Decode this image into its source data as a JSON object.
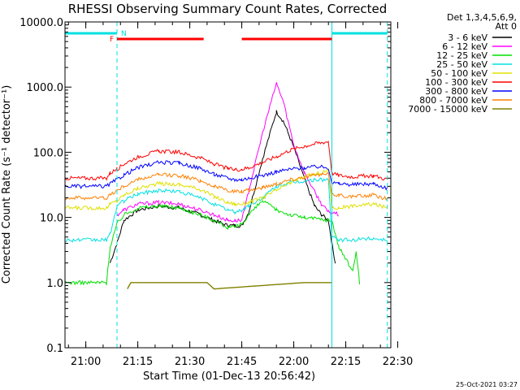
{
  "chart_data": {
    "type": "line",
    "title": "RHESSI Observing Summary Count Rates, Corrected",
    "ylabel": "Corrected Count Rate (s⁻¹ detector⁻¹)",
    "xlabel": "Start Time (01-Dec-13 20:56:42)",
    "timestamp": "25-Oct-2021 03:27",
    "y_scale": "log",
    "ylim": [
      0.1,
      10000
    ],
    "xlim_min": [
      57,
      151
    ],
    "y_ticks": [
      "0.1",
      "1.0",
      "10.0",
      "100.0",
      "1000.0",
      "10000.0"
    ],
    "x_ticks": [
      "21:00",
      "21:15",
      "21:30",
      "21:45",
      "22:00",
      "22:15",
      "22:30"
    ],
    "legend": {
      "header": [
        "Det 1,3,4,5,6,9,",
        "Att 0"
      ],
      "entries": [
        {
          "label": "3 - 6 keV",
          "color": "#000000"
        },
        {
          "label": "6 - 12 keV",
          "color": "#ff00ff"
        },
        {
          "label": "12 - 25 keV",
          "color": "#00e000"
        },
        {
          "label": "25 - 50 keV",
          "color": "#00e0e0"
        },
        {
          "label": "50 - 100 keV",
          "color": "#e0e000"
        },
        {
          "label": "100 - 300 keV",
          "color": "#ff0000"
        },
        {
          "label": "300 - 800 keV",
          "color": "#0000ff"
        },
        {
          "label": "800 - 7000 keV",
          "color": "#ff8000"
        },
        {
          "label": "7000 - 15000 keV",
          "color": "#808000"
        }
      ]
    },
    "markers": {
      "night_label": "N",
      "flare_label": "F",
      "night_segments": [
        [
          57,
          72
        ],
        [
          134,
          150
        ]
      ],
      "flare_segments": [
        [
          72,
          97
        ],
        [
          108,
          134
        ]
      ],
      "saa_boundaries": [
        57,
        72,
        134,
        150
      ]
    },
    "series": [
      {
        "name": "3 - 6 keV",
        "color": "#000000",
        "t": [
          57,
          69,
          70,
          72,
          74,
          78,
          84,
          90,
          96,
          100,
          104,
          106,
          108,
          110,
          114,
          118,
          120,
          123,
          126,
          129,
          131,
          133,
          134,
          135,
          136
        ],
        "v": [
          null,
          null,
          2.0,
          4.0,
          9.0,
          13.0,
          15.0,
          14.0,
          11.0,
          9.0,
          7.5,
          7.5,
          7.5,
          12.0,
          80.0,
          420.0,
          300.0,
          120.0,
          40.0,
          15.0,
          11.0,
          9.0,
          4.0,
          2.0,
          null
        ]
      },
      {
        "name": "6 - 12 keV",
        "color": "#ff00ff",
        "t": [
          72,
          74,
          78,
          84,
          90,
          96,
          100,
          104,
          106,
          108,
          110,
          114,
          118,
          120,
          123,
          126,
          129,
          131,
          133,
          134,
          136
        ],
        "v": [
          11.0,
          13.0,
          16.0,
          17.0,
          16.0,
          13.0,
          11.0,
          9.0,
          9.0,
          9.0,
          25.0,
          200.0,
          1150.0,
          600.0,
          130.0,
          50.0,
          25.0,
          16.0,
          12.0,
          12.0,
          11.0
        ]
      },
      {
        "name": "12 - 25 keV",
        "color": "#00e000",
        "t": [
          57,
          67,
          69,
          70,
          72,
          74,
          78,
          84,
          90,
          96,
          100,
          104,
          106,
          108,
          110,
          114,
          118,
          122,
          126,
          130,
          133,
          134,
          136,
          140,
          141,
          142
        ],
        "v": [
          1.0,
          1.0,
          1.0,
          3.5,
          8.0,
          11.0,
          14.0,
          15.0,
          14.0,
          11.0,
          9.0,
          7.0,
          7.0,
          8.0,
          11.0,
          18.0,
          13.0,
          11.0,
          10.0,
          9.5,
          9.0,
          9.0,
          3.5,
          1.5,
          3.0,
          1.0
        ]
      },
      {
        "name": "25 - 50 keV",
        "color": "#00e0e0",
        "t": [
          57,
          69,
          70,
          72,
          74,
          78,
          84,
          90,
          96,
          100,
          104,
          106,
          108,
          110,
          114,
          118,
          122,
          126,
          130,
          133,
          134,
          136,
          140,
          146,
          150
        ],
        "v": [
          4.5,
          4.5,
          5.5,
          15.0,
          18.0,
          23.0,
          26.0,
          25.0,
          20.0,
          16.0,
          13.0,
          12.0,
          13.0,
          15.0,
          20.0,
          30.0,
          34.0,
          36.0,
          38.0,
          38.0,
          5.0,
          4.5,
          4.5,
          4.8,
          4.5
        ]
      },
      {
        "name": "50 - 100 keV",
        "color": "#e0e000",
        "t": [
          57,
          69,
          70,
          72,
          74,
          78,
          84,
          90,
          96,
          100,
          104,
          106,
          108,
          110,
          114,
          118,
          122,
          126,
          130,
          133,
          134,
          136,
          140,
          146,
          150
        ],
        "v": [
          14.0,
          14.0,
          16.0,
          18.0,
          22.0,
          28.0,
          33.0,
          32.0,
          27.0,
          21.0,
          17.0,
          16.0,
          16.0,
          17.0,
          20.0,
          26.0,
          34.0,
          42.0,
          48.0,
          52.0,
          14.0,
          14.0,
          15.0,
          16.0,
          14.0
        ]
      },
      {
        "name": "100 - 300 keV",
        "color": "#ff0000",
        "t": [
          57,
          69,
          70,
          72,
          74,
          78,
          84,
          90,
          96,
          100,
          104,
          106,
          108,
          110,
          114,
          118,
          122,
          126,
          130,
          133,
          134,
          136,
          140,
          146,
          150
        ],
        "v": [
          40.0,
          40.0,
          48.0,
          55.0,
          66.0,
          85.0,
          104.0,
          100.0,
          82.0,
          66.0,
          56.0,
          54.0,
          55.0,
          58.0,
          70.0,
          86.0,
          108.0,
          124.0,
          138.0,
          146.0,
          48.0,
          44.0,
          42.0,
          44.0,
          38.0
        ]
      },
      {
        "name": "300 - 800 keV",
        "color": "#0000ff",
        "t": [
          57,
          69,
          70,
          72,
          74,
          78,
          84,
          90,
          96,
          100,
          104,
          106,
          108,
          110,
          114,
          118,
          122,
          126,
          130,
          133,
          134,
          136,
          140,
          146,
          150
        ],
        "v": [
          30.0,
          30.0,
          33.0,
          38.0,
          45.0,
          58.0,
          70.0,
          68.0,
          57.0,
          46.0,
          40.0,
          38.0,
          38.0,
          40.0,
          44.0,
          50.0,
          55.0,
          58.0,
          60.0,
          58.0,
          34.0,
          33.0,
          32.0,
          33.0,
          28.0
        ]
      },
      {
        "name": "800 - 7000 keV",
        "color": "#ff8000",
        "t": [
          57,
          69,
          70,
          72,
          74,
          78,
          84,
          90,
          96,
          100,
          104,
          106,
          108,
          110,
          114,
          118,
          122,
          126,
          130,
          133,
          134,
          136,
          140,
          146,
          150
        ],
        "v": [
          20.0,
          20.0,
          22.0,
          26.0,
          30.0,
          38.0,
          45.0,
          44.0,
          37.0,
          30.0,
          26.0,
          25.0,
          25.0,
          26.0,
          29.0,
          33.0,
          38.0,
          42.0,
          45.0,
          46.0,
          23.0,
          22.0,
          21.0,
          22.0,
          19.0
        ]
      },
      {
        "name": "7000 - 15000 keV",
        "color": "#808000",
        "t": [
          75,
          76,
          78,
          82,
          86,
          90,
          94,
          98,
          100,
          126,
          130,
          133,
          134
        ],
        "v": [
          0.8,
          1.0,
          1.0,
          1.0,
          1.0,
          1.0,
          1.0,
          1.0,
          0.8,
          1.0,
          1.0,
          1.0,
          1.0
        ]
      }
    ]
  }
}
